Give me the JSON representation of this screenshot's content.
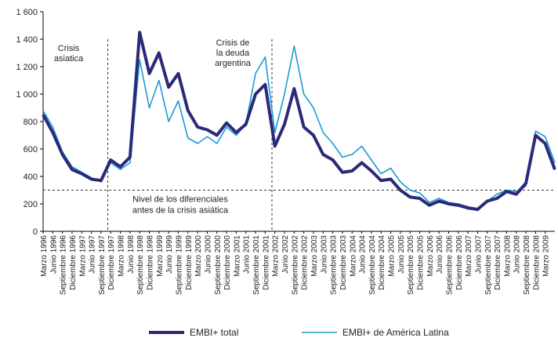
{
  "chart_data": {
    "type": "line",
    "categories": [
      "Marzo 1996",
      "Junio 1996",
      "Septiembre 1996",
      "Diciembre 1996",
      "Marzo 1997",
      "Junio 1997",
      "Septiembre 1997",
      "Diciembre 1997",
      "Marzo 1998",
      "Junio 1998",
      "Septiembre 1998",
      "Diciembre 1998",
      "Marzo 1999",
      "Junio 1999",
      "Septiembre 1999",
      "Diciembre 1999",
      "Marzo 2000",
      "Junio 2000",
      "Septiembre 2000",
      "Diciembre 2000",
      "Marzo 2001",
      "Junio 2001",
      "Septiembre 2001",
      "Diciembre 2001",
      "Marzo 2002",
      "Junio 2002",
      "Septiembre 2002",
      "Diciembre 2002",
      "Marzo 2003",
      "Junio 2003",
      "Septiembre 2003",
      "Diciembre 2003",
      "Marzo 2004",
      "Junio 2004",
      "Septiembre 2004",
      "Diciembre 2004",
      "Marzo 2005",
      "Junio 2005",
      "Septiembre 2005",
      "Diciembre 2005",
      "Marzo 2006",
      "Junio 2006",
      "Septiembre 2006",
      "Diciembre 2006",
      "Marzo 2007",
      "Junio 2007",
      "Septiembre 2007",
      "Diciembre 2007",
      "Marzo 2008",
      "Junio 2008",
      "Septiembre 2008",
      "Diciembre 2008",
      "Marzo 2009",
      null
    ],
    "series": [
      {
        "name": "EMBI+ total",
        "color": "#2b2a7a",
        "width": 4,
        "values": [
          850,
          720,
          560,
          450,
          420,
          380,
          370,
          520,
          470,
          540,
          1450,
          1150,
          1300,
          1050,
          1150,
          880,
          760,
          740,
          700,
          790,
          720,
          780,
          1000,
          1070,
          620,
          780,
          1040,
          760,
          700,
          560,
          520,
          430,
          440,
          500,
          440,
          370,
          380,
          300,
          250,
          240,
          190,
          220,
          200,
          190,
          170,
          160,
          220,
          240,
          290,
          270,
          350,
          700,
          640,
          450
        ]
      },
      {
        "name": "EMBI+ de América Latina",
        "color": "#1b9ad6",
        "width": 1.6,
        "values": [
          880,
          760,
          580,
          470,
          430,
          390,
          360,
          500,
          450,
          500,
          1250,
          900,
          1100,
          800,
          950,
          680,
          640,
          690,
          640,
          760,
          700,
          780,
          1150,
          1270,
          720,
          1000,
          1350,
          1000,
          900,
          720,
          640,
          540,
          560,
          620,
          520,
          420,
          460,
          360,
          300,
          280,
          210,
          240,
          210,
          200,
          180,
          150,
          220,
          270,
          300,
          290,
          330,
          730,
          690,
          500
        ]
      }
    ],
    "ylim": [
      0,
      1600
    ],
    "yticks": [
      0,
      200,
      400,
      600,
      800,
      {
        "value": 1000,
        "label": "1 000"
      },
      {
        "value": 1200,
        "label": "1 200"
      },
      {
        "value": 1400,
        "label": "1 400"
      },
      {
        "value": 1600,
        "label": "1 600"
      }
    ],
    "reference_line": {
      "value": 300,
      "label_1": "Nivel de los diferenciales",
      "label_2": "antes de la crisis asiática"
    },
    "events": [
      {
        "category": "Diciembre 1997",
        "label_1": "Crisis",
        "label_2": "asiatica"
      },
      {
        "category": "Marzo 2002",
        "label_1": "Crisis de",
        "label_2": "la deuda",
        "label_3": "argentina"
      }
    ]
  }
}
